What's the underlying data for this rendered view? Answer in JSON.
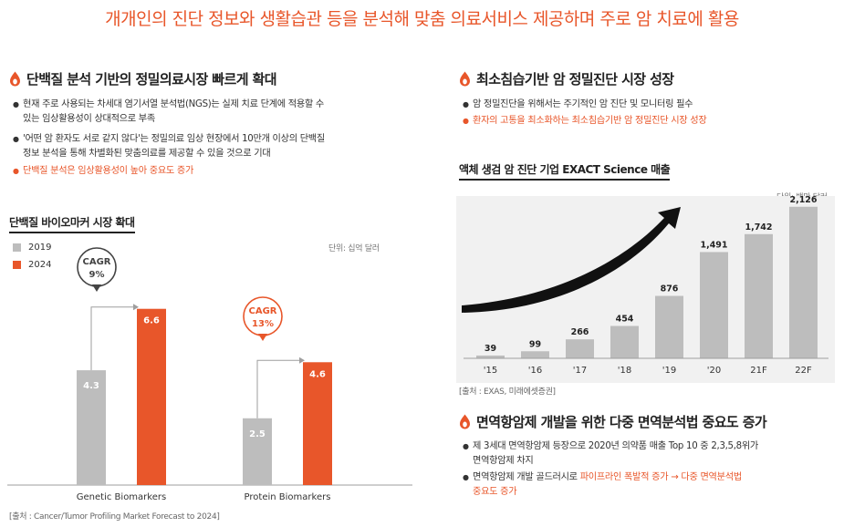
{
  "title": "개개인의 진단 정보와 생활습관 등을 분석해 맞춤 의료서비스 제공하며 주로 암 치료에 활용",
  "left": {
    "heading": "단백질 분석 기반의 정밀의료시장 빠르게 확대",
    "bullets": [
      {
        "text": "현재 주로 사용되는 차세대 염기서열 분석법(NGS)는 실제 치료 단계에 적용할 수"
      },
      {
        "text": "있는 임상활용성이 상대적으로 부족"
      },
      {
        "text": "'어떤 암 환자도 서로 같지 않다'는 정밀의료 임상 현장에서 10만개 이상의 단백질"
      },
      {
        "text": "정보 분석을 통해 차별화된 맞춤의료를 제공할 수 있을 것으로 기대"
      },
      {
        "text": "단백질 분석은 임상활용성이 높아 중요도 증가"
      }
    ],
    "chart_heading": "단백질 바이오마커 시장 확대",
    "unit": "단위: 십억 달러",
    "source": "[출처 : Cancer/Tumor Profiling Market Forecast to 2024]"
  },
  "right": {
    "heading1": "최소침습기반 암 정밀진단 시장 성장",
    "bullets1": [
      {
        "text": "암 정밀진단을 위해서는 주기적인 암 진단 및 모니터링 필수"
      },
      {
        "text": "환자의 고통을 최소화하는 최소침습기반 암 정밀진단 시장 성장"
      }
    ],
    "chart_heading": "액체 생검 암 진단 기업 EXACT Science 매출",
    "unit": "단위: 백만 달러",
    "source": "[출처 : EXAS, 미래에셋증권]",
    "heading2": "면역항암제 개발을 위한 다중 면역분석법 중요도 증가",
    "bullets2": {
      "b1_line1": "제 3세대 면역항암제 등장으로 2020년 의약품 매출 Top 10 중 2,3,5,8위가",
      "b1_line2": "면역항암제 차지",
      "b2_line1_a": "면역항암제 개발 골드러시로 ",
      "b2_line1_b": "파이프라인 폭발적 증가 → 다중 면역분석법",
      "b2_line2": "중요도 증가"
    }
  },
  "colors": {
    "accent": "#e8562a",
    "gray_bar": "#bdbdbd"
  },
  "chart_data": [
    {
      "type": "bar",
      "categories": [
        "Genetic Biomarkers",
        "Protein Biomarkers"
      ],
      "series": [
        {
          "name": "2019",
          "values": [
            4.3,
            2.5
          ],
          "color": "#bdbdbd"
        },
        {
          "name": "2024",
          "values": [
            6.6,
            4.6
          ],
          "color": "#e8562a"
        }
      ],
      "annotations": [
        {
          "label_line1": "CAGR",
          "label_line2": "9%",
          "category": "Genetic Biomarkers",
          "style": "gray"
        },
        {
          "label_line1": "CAGR",
          "label_line2": "13%",
          "category": "Protein Biomarkers",
          "style": "accent"
        }
      ],
      "ylim": [
        0,
        7
      ],
      "legend": "top-left"
    },
    {
      "type": "bar",
      "categories": [
        "'15",
        "'16",
        "'17",
        "'18",
        "'19",
        "'20",
        "21F",
        "22F"
      ],
      "values": [
        39,
        99,
        266,
        454,
        876,
        1491,
        1742,
        2126
      ],
      "labels": [
        "39",
        "99",
        "266",
        "454",
        "876",
        "1,491",
        "1,742",
        "2,126"
      ],
      "ylim": [
        0,
        2200
      ],
      "trend_arrow": true
    }
  ]
}
